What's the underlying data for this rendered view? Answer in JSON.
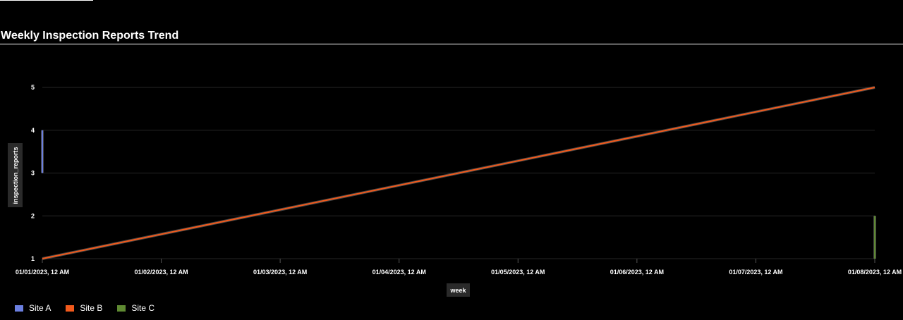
{
  "chart_data": {
    "type": "line",
    "title": "Weekly Inspection Reports Trend",
    "xlabel": "week",
    "ylabel": "inspection_reports",
    "x_ticks": [
      "01/01/2023, 12 AM",
      "01/02/2023, 12 AM",
      "01/03/2023, 12 AM",
      "01/04/2023, 12 AM",
      "01/05/2023, 12 AM",
      "01/06/2023, 12 AM",
      "01/07/2023, 12 AM",
      "01/08/2023, 12 AM"
    ],
    "y_ticks": [
      1,
      2,
      3,
      4,
      5
    ],
    "ylim": [
      1,
      5
    ],
    "xlim": [
      "01/01/2023, 12 AM",
      "01/08/2023, 12 AM"
    ],
    "grid": true,
    "legend_position": "bottom-left",
    "series": [
      {
        "name": "Site A",
        "color": "#6b7fe0",
        "points": [
          {
            "x": "01/01/2023, 12 AM",
            "y": 3
          },
          {
            "x": "01/01/2023, 12 AM",
            "y": 4
          }
        ]
      },
      {
        "name": "Site B",
        "color": "#f25a1c",
        "points": [
          {
            "x": "01/01/2023, 12 AM",
            "y": 1
          },
          {
            "x": "01/08/2023, 12 AM",
            "y": 5
          }
        ]
      },
      {
        "name": "Site C",
        "color": "#5f8a32",
        "points": [
          {
            "x": "01/08/2023, 12 AM",
            "y": 1
          },
          {
            "x": "01/08/2023, 12 AM",
            "y": 2
          }
        ]
      }
    ]
  }
}
